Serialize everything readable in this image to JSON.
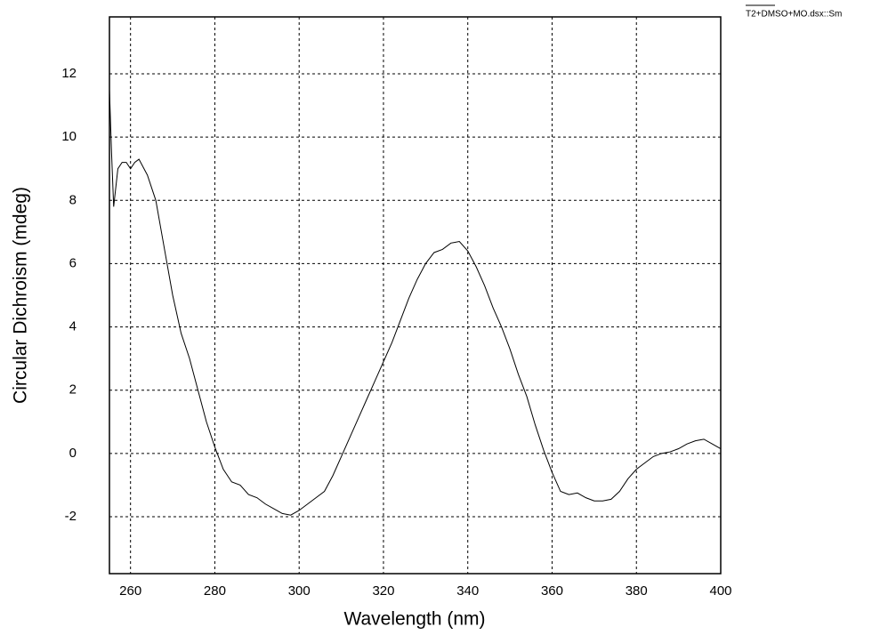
{
  "chart_data": {
    "type": "line",
    "xlabel": "Wavelength (nm)",
    "ylabel": "Circular Dichroism (mdeg)",
    "x": [
      255,
      255.5,
      256,
      257,
      258,
      259,
      260,
      261,
      262,
      264,
      266,
      268,
      270,
      272,
      274,
      276,
      278,
      280,
      282,
      284,
      286,
      288,
      290,
      292,
      294,
      296,
      298,
      300,
      302,
      304,
      306,
      308,
      310,
      312,
      314,
      316,
      318,
      320,
      322,
      324,
      326,
      328,
      330,
      332,
      334,
      336,
      338,
      340,
      342,
      344,
      346,
      348,
      350,
      352,
      354,
      356,
      358,
      360,
      362,
      364,
      366,
      368,
      370,
      372,
      374,
      376,
      378,
      380,
      382,
      384,
      386,
      388,
      390,
      392,
      394,
      396,
      398,
      400
    ],
    "series": [
      {
        "name": "T2+DMSO+MO.dsx::Sm",
        "color": "#000000",
        "values": [
          11.5,
          9.5,
          7.8,
          9.0,
          9.2,
          9.2,
          9.0,
          9.2,
          9.3,
          8.8,
          8.0,
          6.5,
          5.0,
          3.8,
          3.0,
          2.0,
          1.0,
          0.2,
          -0.5,
          -0.9,
          -1.0,
          -1.3,
          -1.4,
          -1.6,
          -1.75,
          -1.9,
          -1.95,
          -1.8,
          -1.6,
          -1.4,
          -1.2,
          -0.7,
          -0.1,
          0.5,
          1.1,
          1.7,
          2.3,
          2.9,
          3.5,
          4.2,
          4.9,
          5.5,
          6.0,
          6.35,
          6.45,
          6.65,
          6.7,
          6.4,
          5.9,
          5.3,
          4.6,
          4.0,
          3.3,
          2.5,
          1.8,
          0.9,
          0.1,
          -0.6,
          -1.2,
          -1.3,
          -1.25,
          -1.4,
          -1.5,
          -1.5,
          -1.45,
          -1.2,
          -0.8,
          -0.5,
          -0.3,
          -0.1,
          0.0,
          0.05,
          0.15,
          0.3,
          0.4,
          0.45,
          0.3,
          0.15
        ]
      }
    ],
    "xlim": [
      255,
      400
    ],
    "ylim": [
      -3.8,
      13.8
    ],
    "xticks": [
      260,
      280,
      300,
      320,
      340,
      360,
      380,
      400
    ],
    "yticks": [
      -2,
      0,
      2,
      4,
      6,
      8,
      10,
      12
    ],
    "grid": true,
    "legend": "top-right"
  }
}
